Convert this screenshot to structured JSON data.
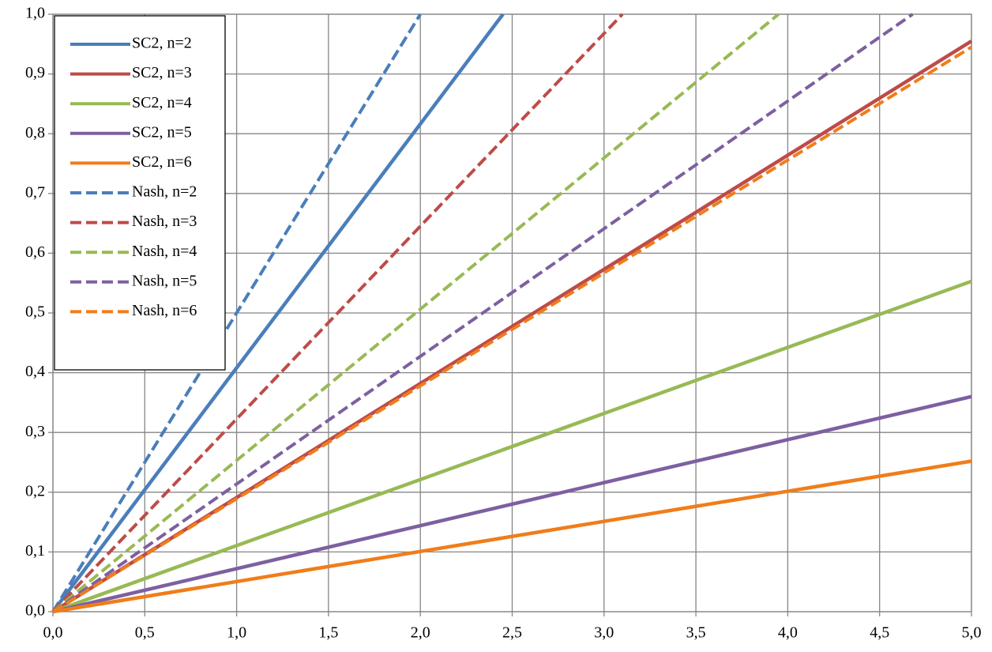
{
  "chart_data": {
    "type": "line",
    "xlim": [
      0,
      5
    ],
    "ylim": [
      0,
      1
    ],
    "xticks": [
      {
        "value": 0,
        "label": "0,0"
      },
      {
        "value": 0.5,
        "label": "0,5"
      },
      {
        "value": 1,
        "label": "1,0"
      },
      {
        "value": 1.5,
        "label": "1,5"
      },
      {
        "value": 2,
        "label": "2,0"
      },
      {
        "value": 2.5,
        "label": "2,5"
      },
      {
        "value": 3,
        "label": "3,0"
      },
      {
        "value": 3.5,
        "label": "3,5"
      },
      {
        "value": 4,
        "label": "4,0"
      },
      {
        "value": 4.5,
        "label": "4,5"
      },
      {
        "value": 5,
        "label": "5,0"
      }
    ],
    "yticks": [
      {
        "value": 0,
        "label": "0,0"
      },
      {
        "value": 0.1,
        "label": "0,1"
      },
      {
        "value": 0.2,
        "label": "0,2"
      },
      {
        "value": 0.3,
        "label": "0,3"
      },
      {
        "value": 0.4,
        "label": "0,4"
      },
      {
        "value": 0.5,
        "label": "0,5"
      },
      {
        "value": 0.6,
        "label": "0,6"
      },
      {
        "value": 0.7,
        "label": "0,7"
      },
      {
        "value": 0.8,
        "label": "0,8"
      },
      {
        "value": 0.9,
        "label": "0,9"
      },
      {
        "value": 1,
        "label": "1,0"
      }
    ],
    "grid": true,
    "legend": "top-left",
    "series": [
      {
        "name": "SC2, n=2",
        "color": "#4a7ebb",
        "dash": false,
        "x": [
          0,
          2.45
        ],
        "values": [
          0,
          1.0
        ]
      },
      {
        "name": "SC2, n=3",
        "color": "#be4b48",
        "dash": false,
        "x": [
          0,
          5
        ],
        "values": [
          0,
          0.955
        ]
      },
      {
        "name": "SC2, n=4",
        "color": "#98b954",
        "dash": false,
        "x": [
          0,
          5
        ],
        "values": [
          0,
          0.553
        ]
      },
      {
        "name": "SC2, n=5",
        "color": "#7d60a0",
        "dash": false,
        "x": [
          0,
          5
        ],
        "values": [
          0,
          0.36
        ]
      },
      {
        "name": "SC2, n=6",
        "color": "#f07d1a",
        "dash": false,
        "x": [
          0,
          5
        ],
        "values": [
          0,
          0.252
        ]
      },
      {
        "name": "Nash, n=2",
        "color": "#4a7ebb",
        "dash": true,
        "x": [
          0,
          2.0
        ],
        "values": [
          0,
          1.0
        ]
      },
      {
        "name": "Nash, n=3",
        "color": "#be4b48",
        "dash": true,
        "x": [
          0,
          3.1
        ],
        "values": [
          0,
          1.0
        ]
      },
      {
        "name": "Nash, n=4",
        "color": "#98b954",
        "dash": true,
        "x": [
          0,
          3.95
        ],
        "values": [
          0,
          1.0
        ]
      },
      {
        "name": "Nash, n=5",
        "color": "#7d60a0",
        "dash": true,
        "x": [
          0,
          4.68
        ],
        "values": [
          0,
          1.0
        ]
      },
      {
        "name": "Nash, n=6",
        "color": "#f07d1a",
        "dash": true,
        "x": [
          0,
          5
        ],
        "values": [
          0,
          0.945
        ]
      }
    ]
  }
}
